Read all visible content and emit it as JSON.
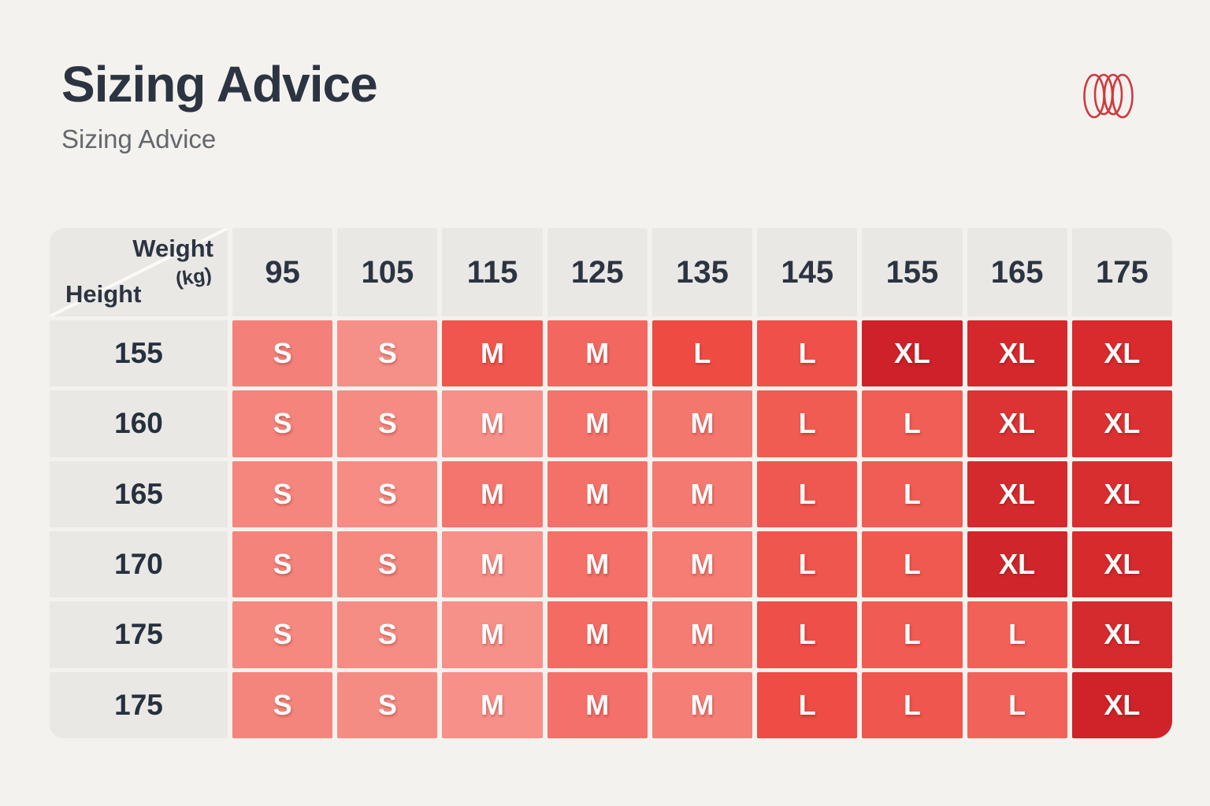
{
  "page": {
    "title": "Sizing Advice",
    "subtitle": "Sizing Advice",
    "background": "#f4f2ee",
    "title_color": "#2c3442",
    "subtitle_color": "#64676d"
  },
  "logo": {
    "name": "overlapping-rings-logo",
    "stroke_color": "#cf3940"
  },
  "table": {
    "corner": {
      "column_label": "Weight",
      "column_unit": "(kg)",
      "row_label": "Height"
    },
    "header_bg": "#e9e8e5",
    "weights": [
      "95",
      "105",
      "115",
      "125",
      "135",
      "145",
      "155",
      "165",
      "175"
    ],
    "rows": [
      {
        "height": "155",
        "sizes": [
          "S",
          "S",
          "M",
          "M",
          "L",
          "L",
          "XL",
          "XL",
          "XL"
        ],
        "colors": [
          "#f3817a",
          "#f59089",
          "#f0564d",
          "#f26860",
          "#ee4b43",
          "#ef5049",
          "#ce2129",
          "#d5282c",
          "#d92b2d"
        ]
      },
      {
        "height": "160",
        "sizes": [
          "S",
          "S",
          "M",
          "M",
          "M",
          "L",
          "L",
          "XL",
          "XL"
        ],
        "colors": [
          "#f4847c",
          "#f58b83",
          "#f69089",
          "#f4736b",
          "#f4776e",
          "#f05b52",
          "#f15e55",
          "#dc3335",
          "#db3133"
        ]
      },
      {
        "height": "165",
        "sizes": [
          "S",
          "S",
          "M",
          "M",
          "M",
          "L",
          "L",
          "XL",
          "XL"
        ],
        "colors": [
          "#f5867e",
          "#f68c84",
          "#f4756d",
          "#f47169",
          "#f47a71",
          "#ef5850",
          "#f05d54",
          "#d42a2e",
          "#d82e30"
        ]
      },
      {
        "height": "170",
        "sizes": [
          "S",
          "S",
          "M",
          "M",
          "M",
          "L",
          "L",
          "XL",
          "XL"
        ],
        "colors": [
          "#f4837b",
          "#f5887f",
          "#f69089",
          "#f47068",
          "#f57d74",
          "#ef564e",
          "#f05950",
          "#d0252b",
          "#d62a2d"
        ]
      },
      {
        "height": "175",
        "sizes": [
          "S",
          "S",
          "M",
          "M",
          "M",
          "L",
          "L",
          "L",
          "XL"
        ],
        "colors": [
          "#f5897f",
          "#f58d84",
          "#f69189",
          "#f36b63",
          "#f57c73",
          "#ee4f48",
          "#f05b53",
          "#f26158",
          "#d62b2e"
        ]
      },
      {
        "height": "175",
        "sizes": [
          "S",
          "S",
          "M",
          "M",
          "M",
          "L",
          "L",
          "L",
          "XL"
        ],
        "colors": [
          "#f4857c",
          "#f58c83",
          "#f69089",
          "#f4706a",
          "#f57f76",
          "#ee4c45",
          "#ef564d",
          "#f1635a",
          "#cf2329"
        ]
      }
    ]
  },
  "chart_data": {
    "type": "table",
    "title": "Sizing Advice",
    "subtitle": "Sizing Advice",
    "x_axis": {
      "label": "Weight",
      "unit": "kg",
      "ticks": [
        95,
        105,
        115,
        125,
        135,
        145,
        155,
        165,
        175
      ]
    },
    "y_axis": {
      "label": "Height",
      "ticks": [
        155,
        160,
        165,
        170,
        175,
        175
      ]
    },
    "values": [
      [
        "S",
        "S",
        "M",
        "M",
        "L",
        "L",
        "XL",
        "XL",
        "XL"
      ],
      [
        "S",
        "S",
        "M",
        "M",
        "M",
        "L",
        "L",
        "XL",
        "XL"
      ],
      [
        "S",
        "S",
        "M",
        "M",
        "M",
        "L",
        "L",
        "XL",
        "XL"
      ],
      [
        "S",
        "S",
        "M",
        "M",
        "M",
        "L",
        "L",
        "XL",
        "XL"
      ],
      [
        "S",
        "S",
        "M",
        "M",
        "M",
        "L",
        "L",
        "L",
        "XL"
      ],
      [
        "S",
        "S",
        "M",
        "M",
        "M",
        "L",
        "L",
        "L",
        "XL"
      ]
    ],
    "legend": "cell color encodes size: S light salmon, M salmon red, L red, XL dark red"
  }
}
